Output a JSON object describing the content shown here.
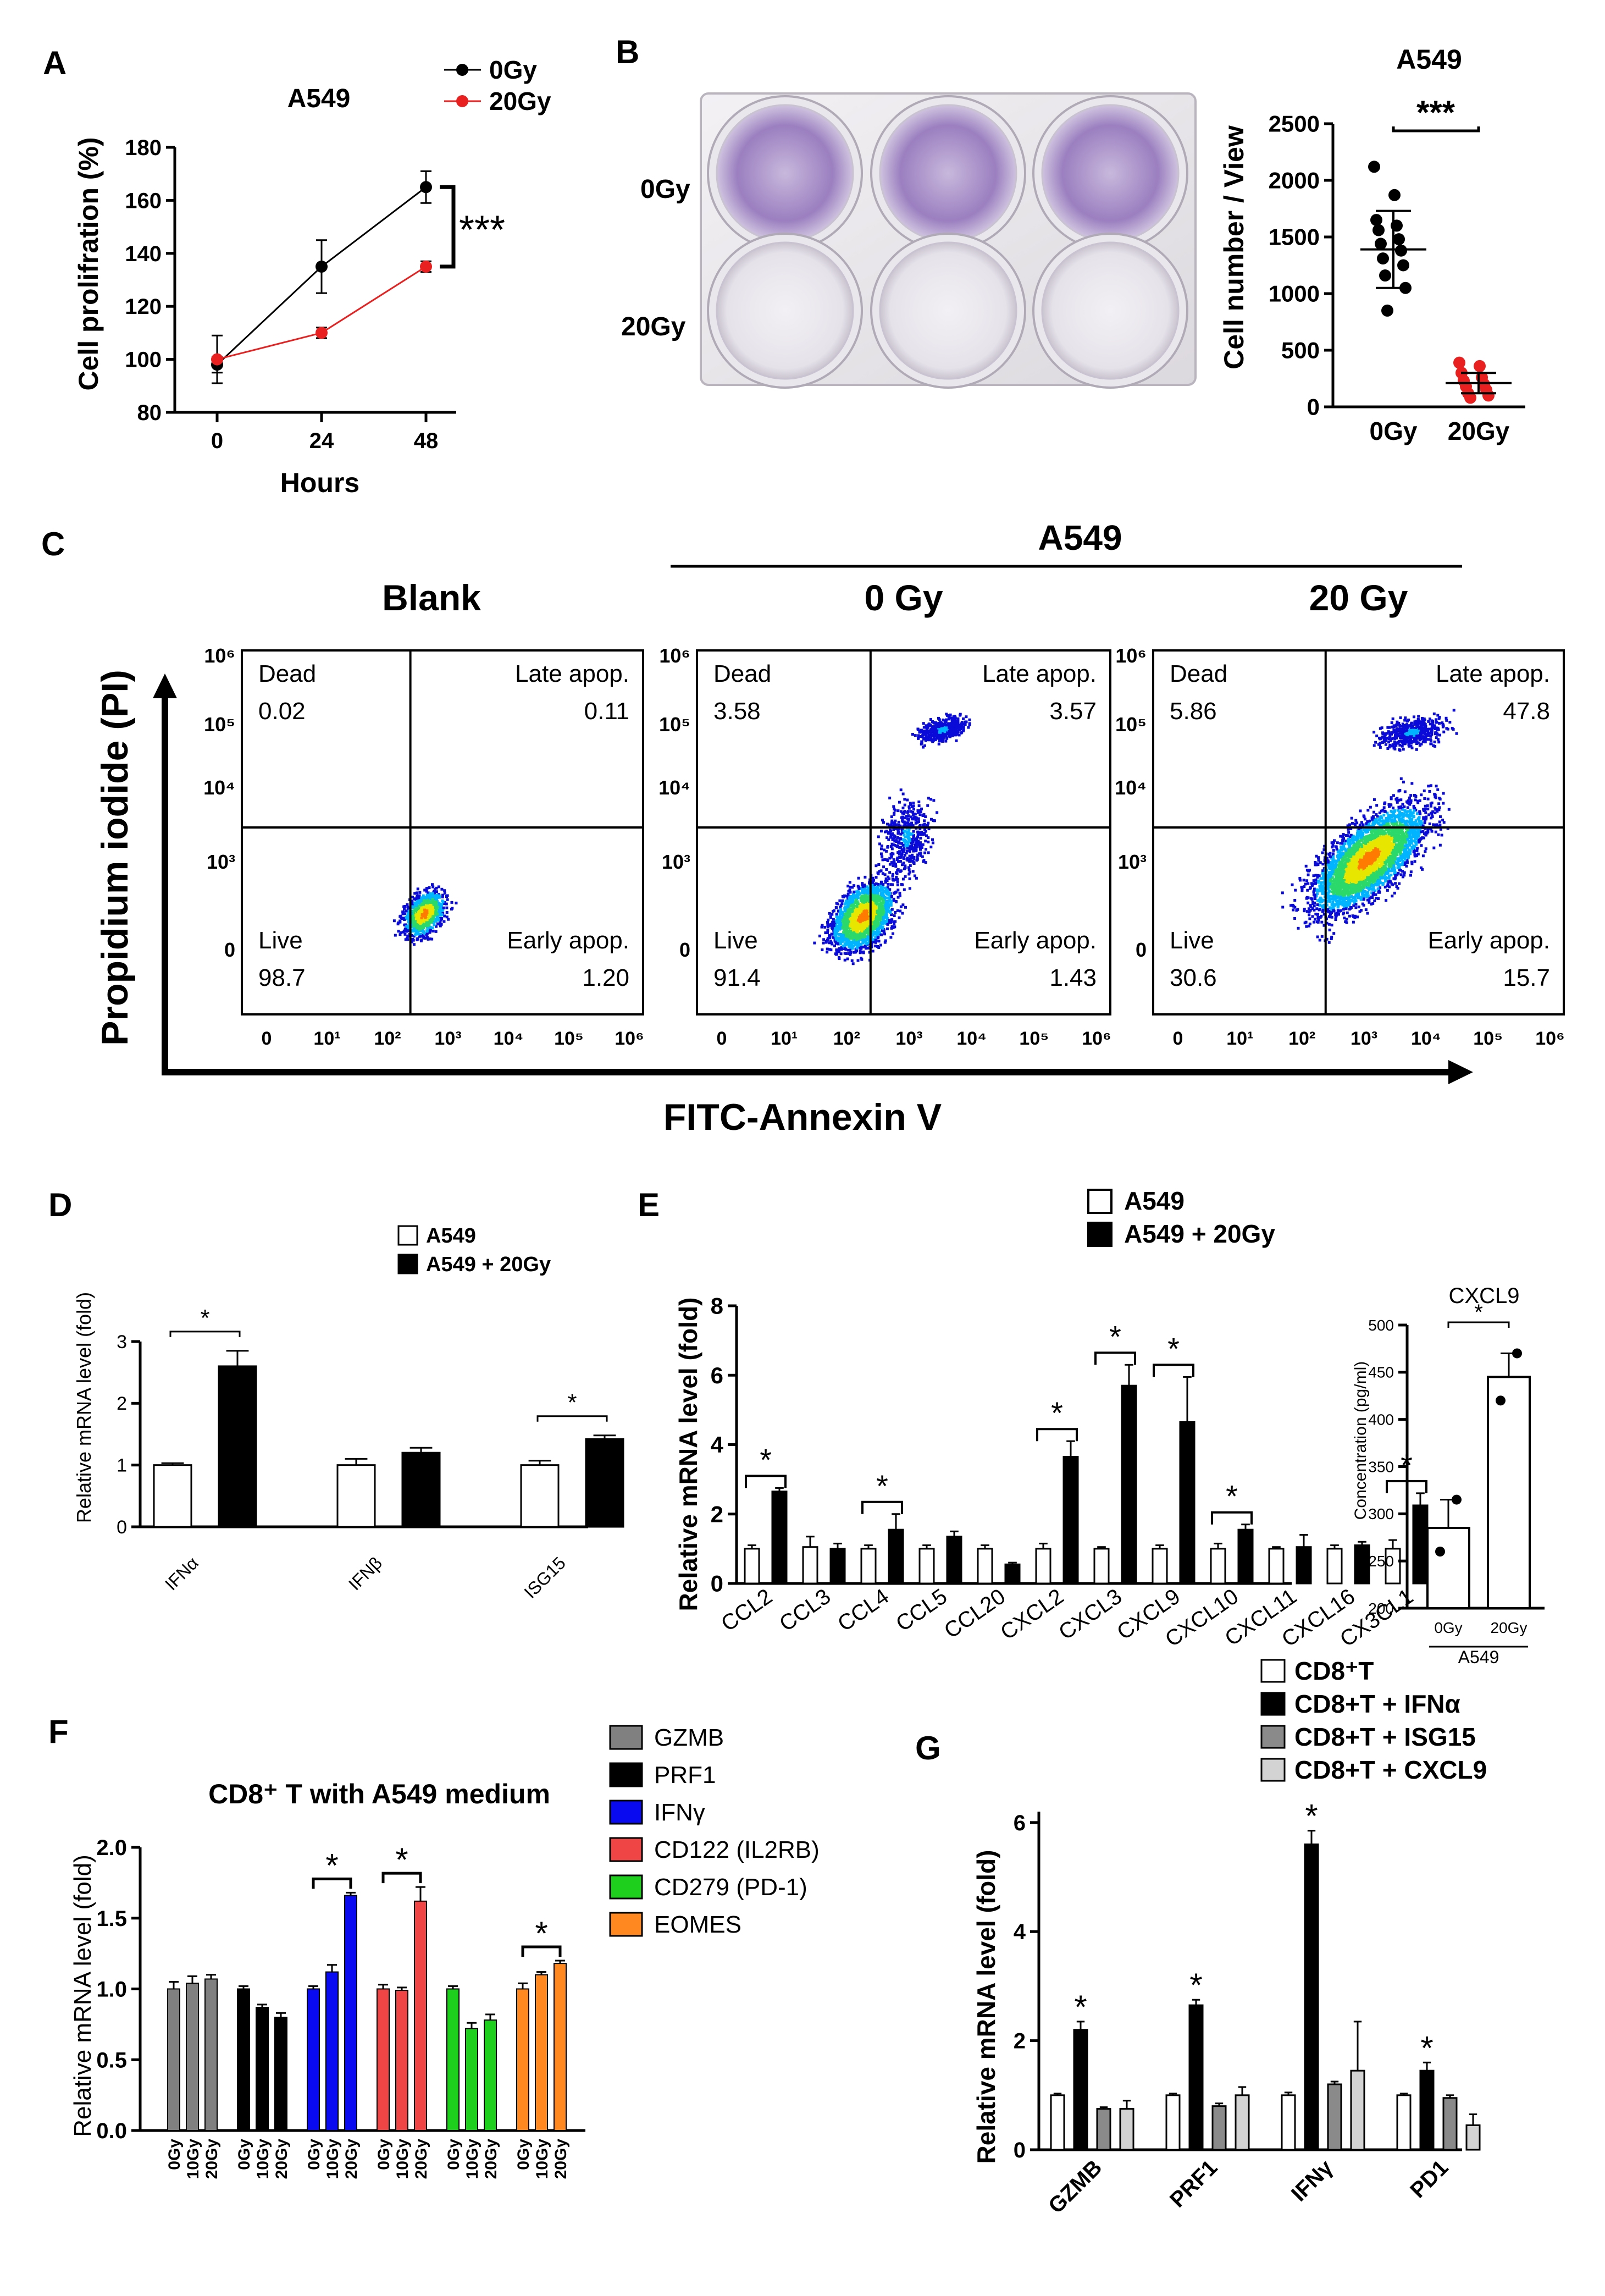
{
  "panels": {
    "A": {
      "letter": "A",
      "chart_data": {
        "type": "line",
        "title": "A549",
        "xlabel": "Hours",
        "ylabel": "Cell prolifration (%)",
        "x": [
          0,
          24,
          48
        ],
        "xticks": [
          "0",
          "24",
          "48"
        ],
        "ylim": [
          80,
          180
        ],
        "yticks": [
          "80",
          "100",
          "120",
          "140",
          "160",
          "180"
        ],
        "series": [
          {
            "name": "0Gy",
            "color": "#000000",
            "values": [
              98,
              135,
              165
            ],
            "errors": [
              3,
              10,
              6
            ]
          },
          {
            "name": "20Gy",
            "color": "#e8201f",
            "values": [
              100,
              110,
              135
            ],
            "errors": [
              9,
              2,
              2
            ]
          }
        ],
        "significance": "***"
      }
    },
    "B": {
      "letter": "B",
      "photo_labels": [
        "0Gy",
        "20Gy"
      ],
      "chart_data": {
        "type": "scatter",
        "title": "A549",
        "ylabel": "Cell number / View",
        "categories": [
          "0Gy",
          "20Gy"
        ],
        "ylim": [
          0,
          2500
        ],
        "yticks": [
          "0",
          "500",
          "1000",
          "1500",
          "2000",
          "2500"
        ],
        "series": [
          {
            "name": "0Gy",
            "color": "#000000",
            "mean": 1390,
            "sd": 340,
            "values": [
              2120,
              1870,
              1650,
              1600,
              1560,
              1480,
              1440,
              1380,
              1310,
              1250,
              1160,
              1050,
              850
            ]
          },
          {
            "name": "20Gy",
            "color": "#e8201f",
            "mean": 210,
            "sd": 90,
            "values": [
              390,
              360,
              300,
              260,
              230,
              200,
              180,
              150,
              120,
              100,
              80
            ]
          }
        ],
        "significance": "***"
      }
    },
    "C": {
      "letter": "C",
      "group_label": "A549",
      "y_axis_label": "Propidium iodide (PI)",
      "x_axis_label": "FITC-Annexin V",
      "y_tick_labels": [
        "10⁶",
        "10⁵",
        "10⁴",
        "10³",
        "0"
      ],
      "x_tick_labels": [
        "0",
        "10¹",
        "10²",
        "10³",
        "10⁴",
        "10⁵",
        "10⁶"
      ],
      "plots": [
        {
          "title": "Blank",
          "dead": {
            "label": "Dead",
            "value": "0.02"
          },
          "late": {
            "label": "Late apop.",
            "value": "0.11"
          },
          "live": {
            "label": "Live",
            "value": "98.7"
          },
          "early": {
            "label": "Early apop.",
            "value": "1.20"
          }
        },
        {
          "title": "0 Gy",
          "dead": {
            "label": "Dead",
            "value": "3.58"
          },
          "late": {
            "label": "Late apop.",
            "value": "3.57"
          },
          "live": {
            "label": "Live",
            "value": "91.4"
          },
          "early": {
            "label": "Early apop.",
            "value": "1.43"
          }
        },
        {
          "title": "20 Gy",
          "dead": {
            "label": "Dead",
            "value": "5.86"
          },
          "late": {
            "label": "Late apop.",
            "value": "47.8"
          },
          "live": {
            "label": "Live",
            "value": "30.6"
          },
          "early": {
            "label": "Early apop.",
            "value": "15.7"
          }
        }
      ]
    },
    "D": {
      "letter": "D",
      "chart_data": {
        "type": "bar",
        "ylabel": "Relative mRNA level (fold)",
        "categories": [
          "IFNα",
          "IFNβ",
          "ISG15"
        ],
        "ylim": [
          0,
          3
        ],
        "yticks": [
          "0",
          "1",
          "2",
          "3"
        ],
        "series": [
          {
            "name": "A549",
            "color": "#ffffff",
            "values": [
              1.0,
              1.0,
              1.0
            ],
            "errors": [
              0.03,
              0.1,
              0.07
            ]
          },
          {
            "name": "A549 + 20Gy",
            "color": "#000000",
            "values": [
              2.6,
              1.2,
              1.42
            ],
            "errors": [
              0.25,
              0.08,
              0.06
            ]
          }
        ],
        "significance": [
          "*",
          "",
          "*"
        ]
      }
    },
    "E": {
      "letter": "E",
      "legend": [
        "A549",
        "A549 + 20Gy"
      ],
      "chart_data": [
        {
          "type": "bar",
          "ylabel": "Relative mRNA level (fold)",
          "categories": [
            "CCL2",
            "CCL3",
            "CCL4",
            "CCL5",
            "CCL20",
            "CXCL2",
            "CXCL3",
            "CXCL9",
            "CXCL10",
            "CXCL11",
            "CXCL16",
            "CX3CL1"
          ],
          "ylim": [
            0,
            8
          ],
          "yticks": [
            "0",
            "2",
            "4",
            "6",
            "8"
          ],
          "series": [
            {
              "name": "A549",
              "values": [
                1,
                1.05,
                1,
                1,
                1,
                1,
                1,
                1,
                1,
                1,
                1,
                1
              ],
              "errors": [
                0.1,
                0.3,
                0.1,
                0.1,
                0.1,
                0.15,
                0.05,
                0.1,
                0.15,
                0.05,
                0.1,
                0.25
              ]
            },
            {
              "name": "A549 + 20Gy",
              "values": [
                2.65,
                1.0,
                1.55,
                1.35,
                0.55,
                3.65,
                5.7,
                4.65,
                1.55,
                1.05,
                1.1,
                2.25
              ],
              "errors": [
                0.1,
                0.15,
                0.45,
                0.15,
                0.05,
                0.45,
                0.6,
                1.3,
                0.15,
                0.35,
                0.1,
                0.35
              ]
            }
          ],
          "significance": [
            "*",
            "",
            "*",
            "",
            "",
            "*",
            "*",
            "*",
            "*",
            "",
            "",
            "*"
          ]
        },
        {
          "type": "bar",
          "title": "CXCL9",
          "ylabel": "Concentration (pg/ml)",
          "categories": [
            "0Gy",
            "20Gy"
          ],
          "group_label": "A549",
          "ylim": [
            200,
            500
          ],
          "yticks": [
            "200",
            "250",
            "300",
            "350",
            "400",
            "450",
            "500"
          ],
          "values": [
            285,
            445
          ],
          "points": [
            [
              260,
              315
            ],
            [
              420,
              470
            ]
          ],
          "significance": "*"
        }
      ]
    },
    "F": {
      "letter": "F",
      "chart_data": {
        "type": "bar",
        "title": "CD8⁺ T with A549 medium",
        "ylabel": "Relative mRNA level (fold)",
        "categories": [
          "0Gy",
          "10Gy",
          "20Gy"
        ],
        "ylim": [
          0,
          2.0
        ],
        "yticks": [
          "0.0",
          "0.5",
          "1.0",
          "1.5",
          "2.0"
        ],
        "series": [
          {
            "name": "GZMB",
            "color": "#808080",
            "values": [
              1.0,
              1.04,
              1.07
            ],
            "errors": [
              0.05,
              0.05,
              0.03
            ]
          },
          {
            "name": "PRF1",
            "color": "#000000",
            "values": [
              1.0,
              0.87,
              0.8
            ],
            "errors": [
              0.02,
              0.02,
              0.03
            ]
          },
          {
            "name": "IFNγ",
            "color": "#0a0af0",
            "values": [
              1.0,
              1.12,
              1.66
            ],
            "errors": [
              0.02,
              0.05,
              0.02
            ]
          },
          {
            "name": "CD122 (IL2RB)",
            "color": "#f04545",
            "values": [
              1.0,
              0.99,
              1.62
            ],
            "errors": [
              0.03,
              0.02,
              0.1
            ]
          },
          {
            "name": "CD279 (PD-1)",
            "color": "#1ecf1e",
            "values": [
              1.0,
              0.72,
              0.78
            ],
            "errors": [
              0.02,
              0.04,
              0.04
            ]
          },
          {
            "name": "EOMES",
            "color": "#ff8820",
            "values": [
              1.0,
              1.1,
              1.18
            ],
            "errors": [
              0.04,
              0.02,
              0.02
            ]
          }
        ],
        "significance": [
          "",
          "",
          "*",
          "*",
          "",
          "*"
        ]
      }
    },
    "G": {
      "letter": "G",
      "chart_data": {
        "type": "bar",
        "ylabel": "Relative mRNA level (fold)",
        "categories": [
          "GZMB",
          "PRF1",
          "IFNγ",
          "PD1"
        ],
        "ylim": [
          0,
          6.2
        ],
        "yticks": [
          "0",
          "2",
          "4",
          "6"
        ],
        "series": [
          {
            "name": "CD8⁺T",
            "color": "#ffffff",
            "values": [
              1.0,
              1.0,
              1.0,
              1.0
            ],
            "errors": [
              0.03,
              0.03,
              0.05,
              0.03
            ]
          },
          {
            "name": "CD8+T + IFNα",
            "color": "#000000",
            "values": [
              2.2,
              2.65,
              5.6,
              1.45
            ],
            "errors": [
              0.15,
              0.1,
              0.25,
              0.15
            ]
          },
          {
            "name": "CD8+T + ISG15",
            "color": "#8a8a8a",
            "values": [
              0.75,
              0.8,
              1.2,
              0.95
            ],
            "errors": [
              0.03,
              0.05,
              0.05,
              0.05
            ]
          },
          {
            "name": "CD8+T + CXCL9",
            "color": "#d3d3d3",
            "values": [
              0.75,
              1.0,
              1.45,
              0.45
            ],
            "errors": [
              0.15,
              0.15,
              0.9,
              0.2
            ]
          }
        ],
        "significance": [
          "*",
          "*",
          "*",
          "*"
        ]
      }
    }
  }
}
